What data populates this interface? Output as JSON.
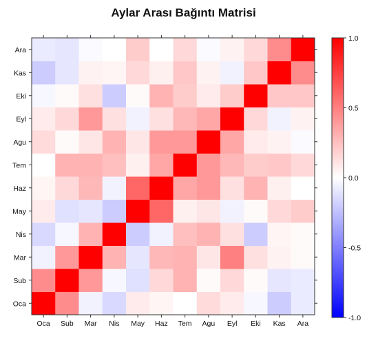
{
  "chart_data": {
    "type": "heatmap",
    "title": "Aylar Arası Bağıntı Matrisi",
    "x_categories": [
      "Oca",
      "Sub",
      "Mar",
      "Nis",
      "May",
      "Haz",
      "Tem",
      "Agu",
      "Eyl",
      "Eki",
      "Kas",
      "Ara"
    ],
    "y_categories": [
      "Oca",
      "Sub",
      "Mar",
      "Nis",
      "May",
      "Haz",
      "Tem",
      "Agu",
      "Eyl",
      "Eki",
      "Kas",
      "Ara"
    ],
    "matrix": [
      [
        1.0,
        0.45,
        -0.05,
        -0.15,
        0.08,
        0.04,
        0.0,
        0.14,
        0.08,
        -0.03,
        -0.2,
        -0.08
      ],
      [
        0.45,
        1.0,
        0.4,
        -0.03,
        -0.12,
        0.15,
        0.3,
        0.02,
        0.15,
        0.02,
        -0.1,
        -0.08
      ],
      [
        -0.05,
        0.4,
        1.0,
        0.3,
        -0.1,
        0.28,
        0.3,
        0.1,
        0.5,
        0.12,
        0.05,
        0.02
      ],
      [
        -0.15,
        -0.03,
        0.3,
        1.0,
        -0.2,
        -0.05,
        0.25,
        0.3,
        0.12,
        -0.2,
        0.04,
        0.02
      ],
      [
        0.08,
        -0.12,
        -0.1,
        -0.2,
        1.0,
        0.6,
        0.06,
        0.1,
        -0.05,
        0.02,
        0.15,
        0.2
      ],
      [
        0.04,
        0.15,
        0.28,
        -0.05,
        0.6,
        1.0,
        0.35,
        0.4,
        0.12,
        0.3,
        0.06,
        0.0
      ],
      [
        0.0,
        0.3,
        0.3,
        0.25,
        0.06,
        0.35,
        1.0,
        0.4,
        0.28,
        0.2,
        0.22,
        0.15
      ],
      [
        0.14,
        0.02,
        0.1,
        0.3,
        0.1,
        0.4,
        0.4,
        1.0,
        0.35,
        0.08,
        0.05,
        -0.02
      ],
      [
        0.08,
        0.15,
        0.4,
        0.12,
        -0.05,
        0.12,
        0.28,
        0.35,
        1.0,
        0.15,
        -0.05,
        0.05
      ],
      [
        -0.03,
        0.02,
        0.12,
        -0.2,
        0.02,
        0.3,
        0.2,
        0.08,
        0.2,
        1.0,
        0.22,
        0.22
      ],
      [
        -0.2,
        -0.1,
        0.05,
        0.04,
        0.15,
        0.06,
        0.22,
        0.05,
        -0.05,
        0.22,
        1.0,
        0.45
      ],
      [
        -0.08,
        -0.1,
        -0.02,
        0.0,
        0.2,
        0.0,
        0.15,
        -0.02,
        0.05,
        0.15,
        0.45,
        1.0
      ]
    ],
    "colorbar": {
      "range": [
        -1.0,
        1.0
      ],
      "ticks": [
        -1.0,
        -0.5,
        0.0,
        0.5,
        1.0
      ],
      "tick_labels": [
        "-1.0",
        "-0.5",
        "0.0",
        "0.5",
        "1.0"
      ],
      "colors": {
        "low": "#0000ff",
        "mid": "#ffffff",
        "high": "#ff0000"
      }
    }
  }
}
